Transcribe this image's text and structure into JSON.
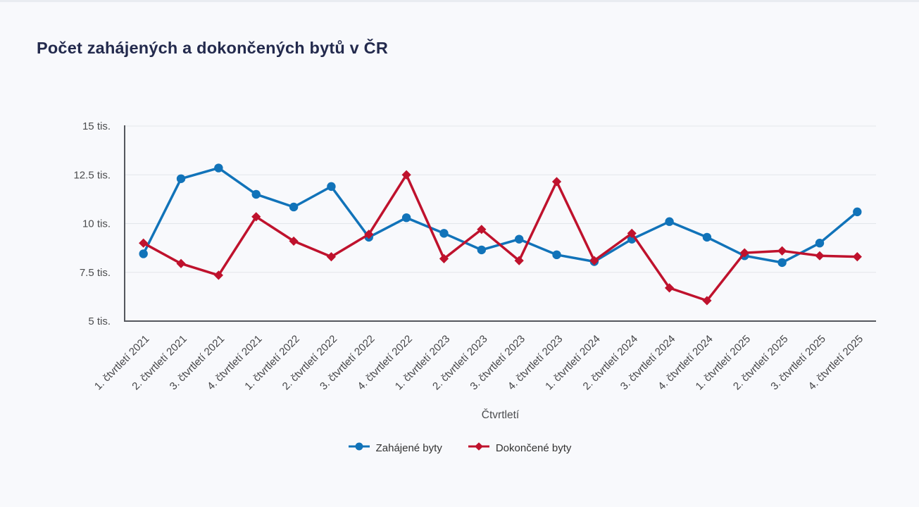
{
  "page": {
    "title": "Počet zahájených a dokončených bytů v ČR"
  },
  "chart_data": {
    "type": "line",
    "title": "Počet zahájených a dokončených bytů v ČR",
    "xlabel": "Čtvrtletí",
    "ylabel": "",
    "y_unit": "tis.",
    "ylim": [
      5,
      15
    ],
    "y_ticks": [
      5,
      7.5,
      10,
      12.5,
      15
    ],
    "y_tick_labels": [
      "5 tis.",
      "7.5 tis.",
      "10 tis.",
      "12.5 tis.",
      "15 tis."
    ],
    "grid": true,
    "legend_position": "bottom",
    "categories": [
      "1. čtvrtletí 2021",
      "2. čtvrtletí 2021",
      "3. čtvrtletí 2021",
      "4. čtvrtletí 2021",
      "1. čtvrtletí 2022",
      "2. čtvrtletí 2022",
      "3. čtvrtletí 2022",
      "4. čtvrtletí 2022",
      "1. čtvrtletí 2023",
      "2. čtvrtletí 2023",
      "3. čtvrtletí 2023",
      "4. čtvrtletí 2023",
      "1. čtvrtletí 2024",
      "2. čtvrtletí 2024",
      "3. čtvrtletí 2024",
      "4. čtvrtletí 2024",
      "1. čtvrtletí 2025",
      "2. čtvrtletí 2025",
      "3. čtvrtletí 2025",
      "4. čtvrtletí 2025"
    ],
    "series": [
      {
        "name": "Zahájené byty",
        "color": "#1173b9",
        "marker": "circle",
        "values": [
          8.45,
          12.3,
          12.85,
          11.5,
          10.85,
          11.9,
          9.3,
          10.3,
          9.5,
          8.65,
          9.2,
          8.4,
          8.05,
          9.2,
          10.1,
          9.3,
          8.35,
          8.0,
          9.0,
          10.6
        ]
      },
      {
        "name": "Dokončené byty",
        "color": "#bf122d",
        "marker": "diamond",
        "values": [
          9.0,
          7.95,
          7.35,
          10.35,
          9.1,
          8.3,
          9.45,
          12.5,
          8.2,
          9.7,
          8.1,
          12.15,
          8.1,
          9.5,
          6.7,
          6.05,
          8.5,
          8.6,
          8.35,
          8.3
        ]
      }
    ],
    "colors": {
      "background": "#f8f9fc",
      "grid_line": "#e3e6ea",
      "axis_line": "#55585e",
      "title_text": "#232a4d",
      "tick_text": "#454548"
    }
  }
}
